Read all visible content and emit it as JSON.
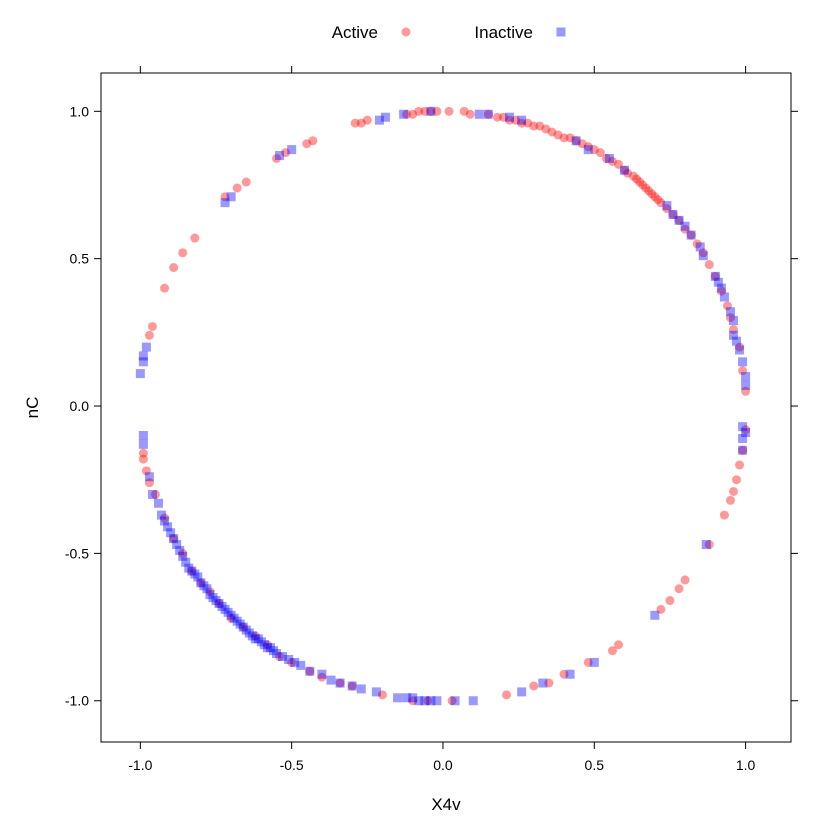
{
  "chart_data": {
    "type": "scatter",
    "xlabel": "X4v",
    "ylabel": "nC",
    "xlim": [
      -1.13,
      1.15
    ],
    "ylim": [
      -1.14,
      1.13
    ],
    "xticks": [
      -1.0,
      -0.5,
      0.0,
      0.5,
      1.0
    ],
    "yticks": [
      -1.0,
      -0.5,
      0.0,
      0.5,
      1.0
    ],
    "xtick_labels": [
      "-1.0",
      "-0.5",
      "0.0",
      "0.5",
      "1.0"
    ],
    "ytick_labels": [
      "-1.0",
      "-0.5",
      "0.0",
      "0.5",
      "1.0"
    ],
    "legend_position": "top",
    "series": [
      {
        "name": "Active",
        "marker": "circle",
        "color": "#ff0000",
        "opacity": 0.4,
        "points": [
          [
            0.02,
            1.0
          ],
          [
            0.07,
            1.0
          ],
          [
            0.09,
            0.99
          ],
          [
            0.15,
            0.99
          ],
          [
            0.18,
            0.98
          ],
          [
            0.2,
            0.98
          ],
          [
            0.22,
            0.97
          ],
          [
            0.24,
            0.97
          ],
          [
            0.26,
            0.96
          ],
          [
            0.28,
            0.96
          ],
          [
            0.3,
            0.95
          ],
          [
            0.32,
            0.95
          ],
          [
            0.34,
            0.94
          ],
          [
            0.36,
            0.93
          ],
          [
            0.38,
            0.92
          ],
          [
            0.4,
            0.91
          ],
          [
            0.42,
            0.91
          ],
          [
            0.44,
            0.9
          ],
          [
            0.46,
            0.89
          ],
          [
            0.48,
            0.88
          ],
          [
            0.5,
            0.87
          ],
          [
            0.52,
            0.86
          ],
          [
            0.54,
            0.84
          ],
          [
            0.56,
            0.83
          ],
          [
            0.58,
            0.82
          ],
          [
            0.6,
            0.8
          ],
          [
            0.61,
            0.79
          ],
          [
            0.63,
            0.78
          ],
          [
            0.64,
            0.77
          ],
          [
            0.65,
            0.76
          ],
          [
            0.66,
            0.75
          ],
          [
            0.67,
            0.74
          ],
          [
            0.68,
            0.73
          ],
          [
            0.69,
            0.72
          ],
          [
            0.7,
            0.71
          ],
          [
            0.71,
            0.7
          ],
          [
            0.72,
            0.69
          ],
          [
            0.74,
            0.67
          ],
          [
            0.76,
            0.65
          ],
          [
            0.78,
            0.63
          ],
          [
            0.8,
            0.6
          ],
          [
            0.82,
            0.58
          ],
          [
            0.84,
            0.55
          ],
          [
            0.86,
            0.52
          ],
          [
            0.88,
            0.48
          ],
          [
            0.9,
            0.44
          ],
          [
            0.92,
            0.39
          ],
          [
            0.94,
            0.34
          ],
          [
            0.95,
            0.3
          ],
          [
            0.96,
            0.26
          ],
          [
            0.98,
            0.2
          ],
          [
            0.99,
            0.12
          ],
          [
            1.0,
            0.05
          ],
          [
            1.0,
            -0.08
          ],
          [
            0.99,
            -0.15
          ],
          [
            0.98,
            -0.2
          ],
          [
            0.97,
            -0.25
          ],
          [
            0.96,
            -0.29
          ],
          [
            0.95,
            -0.32
          ],
          [
            0.93,
            -0.37
          ],
          [
            0.88,
            -0.47
          ],
          [
            0.8,
            -0.59
          ],
          [
            0.78,
            -0.62
          ],
          [
            0.75,
            -0.66
          ],
          [
            0.72,
            -0.69
          ],
          [
            0.58,
            -0.81
          ],
          [
            0.56,
            -0.83
          ],
          [
            0.48,
            -0.87
          ],
          [
            0.4,
            -0.91
          ],
          [
            0.35,
            -0.94
          ],
          [
            0.3,
            -0.95
          ],
          [
            0.21,
            -0.98
          ],
          [
            0.03,
            -1.0
          ],
          [
            -0.05,
            -1.0
          ],
          [
            -0.1,
            -1.0
          ],
          [
            -0.2,
            -0.98
          ],
          [
            -0.3,
            -0.95
          ],
          [
            -0.34,
            -0.94
          ],
          [
            -0.4,
            -0.92
          ],
          [
            -0.44,
            -0.9
          ],
          [
            -0.5,
            -0.87
          ],
          [
            -0.54,
            -0.85
          ],
          [
            -0.58,
            -0.81
          ],
          [
            -0.62,
            -0.78
          ],
          [
            -0.66,
            -0.75
          ],
          [
            -0.7,
            -0.72
          ],
          [
            -0.74,
            -0.67
          ],
          [
            -0.77,
            -0.63
          ],
          [
            -0.8,
            -0.6
          ],
          [
            -0.83,
            -0.56
          ],
          [
            -0.86,
            -0.5
          ],
          [
            -0.89,
            -0.45
          ],
          [
            -0.92,
            -0.38
          ],
          [
            -0.95,
            -0.3
          ],
          [
            -0.97,
            -0.26
          ],
          [
            -0.98,
            -0.22
          ],
          [
            -0.99,
            -0.18
          ],
          [
            -0.99,
            -0.16
          ],
          [
            -0.97,
            0.24
          ],
          [
            -0.96,
            0.27
          ],
          [
            -0.92,
            0.4
          ],
          [
            -0.89,
            0.47
          ],
          [
            -0.86,
            0.52
          ],
          [
            -0.82,
            0.57
          ],
          [
            -0.72,
            0.71
          ],
          [
            -0.68,
            0.74
          ],
          [
            -0.65,
            0.76
          ],
          [
            -0.55,
            0.84
          ],
          [
            -0.52,
            0.86
          ],
          [
            -0.45,
            0.89
          ],
          [
            -0.43,
            0.9
          ],
          [
            -0.29,
            0.96
          ],
          [
            -0.27,
            0.96
          ],
          [
            -0.25,
            0.97
          ],
          [
            -0.12,
            0.99
          ],
          [
            -0.1,
            0.99
          ],
          [
            -0.08,
            1.0
          ],
          [
            -0.06,
            1.0
          ],
          [
            -0.04,
            1.0
          ],
          [
            -0.02,
            1.0
          ]
        ]
      },
      {
        "name": "Inactive",
        "marker": "square",
        "color": "#0000ff",
        "opacity": 0.4,
        "points": [
          [
            -0.5,
            0.87
          ],
          [
            -0.54,
            0.85
          ],
          [
            -0.72,
            0.69
          ],
          [
            -0.7,
            0.71
          ],
          [
            -0.98,
            0.2
          ],
          [
            -0.99,
            0.17
          ],
          [
            -0.99,
            0.15
          ],
          [
            -1.0,
            0.11
          ],
          [
            -0.99,
            -0.1
          ],
          [
            -0.99,
            -0.13
          ],
          [
            -0.97,
            -0.24
          ],
          [
            -0.96,
            -0.3
          ],
          [
            -0.94,
            -0.33
          ],
          [
            -0.93,
            -0.37
          ],
          [
            -0.92,
            -0.39
          ],
          [
            -0.91,
            -0.41
          ],
          [
            -0.9,
            -0.43
          ],
          [
            -0.89,
            -0.45
          ],
          [
            -0.88,
            -0.47
          ],
          [
            -0.87,
            -0.49
          ],
          [
            -0.86,
            -0.51
          ],
          [
            -0.85,
            -0.53
          ],
          [
            -0.84,
            -0.55
          ],
          [
            -0.83,
            -0.56
          ],
          [
            -0.82,
            -0.57
          ],
          [
            -0.81,
            -0.58
          ],
          [
            -0.8,
            -0.6
          ],
          [
            -0.79,
            -0.61
          ],
          [
            -0.78,
            -0.62
          ],
          [
            -0.77,
            -0.64
          ],
          [
            -0.76,
            -0.65
          ],
          [
            -0.75,
            -0.66
          ],
          [
            -0.74,
            -0.67
          ],
          [
            -0.73,
            -0.68
          ],
          [
            -0.72,
            -0.69
          ],
          [
            -0.71,
            -0.7
          ],
          [
            -0.7,
            -0.71
          ],
          [
            -0.69,
            -0.72
          ],
          [
            -0.68,
            -0.73
          ],
          [
            -0.67,
            -0.74
          ],
          [
            -0.66,
            -0.75
          ],
          [
            -0.65,
            -0.76
          ],
          [
            -0.64,
            -0.77
          ],
          [
            -0.63,
            -0.78
          ],
          [
            -0.62,
            -0.79
          ],
          [
            -0.61,
            -0.79
          ],
          [
            -0.6,
            -0.8
          ],
          [
            -0.59,
            -0.81
          ],
          [
            -0.58,
            -0.82
          ],
          [
            -0.57,
            -0.82
          ],
          [
            -0.56,
            -0.83
          ],
          [
            -0.55,
            -0.84
          ],
          [
            -0.53,
            -0.85
          ],
          [
            -0.51,
            -0.86
          ],
          [
            -0.49,
            -0.87
          ],
          [
            -0.47,
            -0.88
          ],
          [
            -0.44,
            -0.9
          ],
          [
            -0.4,
            -0.91
          ],
          [
            -0.37,
            -0.93
          ],
          [
            -0.34,
            -0.94
          ],
          [
            -0.3,
            -0.95
          ],
          [
            -0.27,
            -0.96
          ],
          [
            -0.22,
            -0.97
          ],
          [
            -0.15,
            -0.99
          ],
          [
            -0.12,
            -0.99
          ],
          [
            -0.1,
            -0.99
          ],
          [
            -0.08,
            -1.0
          ],
          [
            -0.06,
            -1.0
          ],
          [
            -0.04,
            -1.0
          ],
          [
            -0.02,
            -1.0
          ],
          [
            0.04,
            -1.0
          ],
          [
            0.1,
            -1.0
          ],
          [
            0.26,
            -0.97
          ],
          [
            0.33,
            -0.94
          ],
          [
            0.42,
            -0.91
          ],
          [
            0.5,
            -0.87
          ],
          [
            0.7,
            -0.71
          ],
          [
            0.87,
            -0.47
          ],
          [
            0.99,
            -0.07
          ],
          [
            1.0,
            -0.09
          ],
          [
            0.99,
            -0.11
          ],
          [
            0.99,
            -0.15
          ],
          [
            1.0,
            0.07
          ],
          [
            1.0,
            0.1
          ],
          [
            0.99,
            0.15
          ],
          [
            0.98,
            0.19
          ],
          [
            0.97,
            0.22
          ],
          [
            0.96,
            0.24
          ],
          [
            0.96,
            0.29
          ],
          [
            0.95,
            0.32
          ],
          [
            0.93,
            0.37
          ],
          [
            0.92,
            0.4
          ],
          [
            0.91,
            0.42
          ],
          [
            0.9,
            0.44
          ],
          [
            0.86,
            0.51
          ],
          [
            0.85,
            0.54
          ],
          [
            0.82,
            0.58
          ],
          [
            0.8,
            0.61
          ],
          [
            0.78,
            0.63
          ],
          [
            0.76,
            0.65
          ],
          [
            0.74,
            0.68
          ],
          [
            0.6,
            0.8
          ],
          [
            0.55,
            0.84
          ],
          [
            0.48,
            0.87
          ],
          [
            0.44,
            0.9
          ],
          [
            0.26,
            0.97
          ],
          [
            0.22,
            0.98
          ],
          [
            0.15,
            0.99
          ],
          [
            0.12,
            0.99
          ],
          [
            -0.13,
            0.99
          ],
          [
            -0.04,
            1.0
          ],
          [
            -0.21,
            0.97
          ],
          [
            -0.19,
            0.98
          ]
        ]
      }
    ]
  }
}
